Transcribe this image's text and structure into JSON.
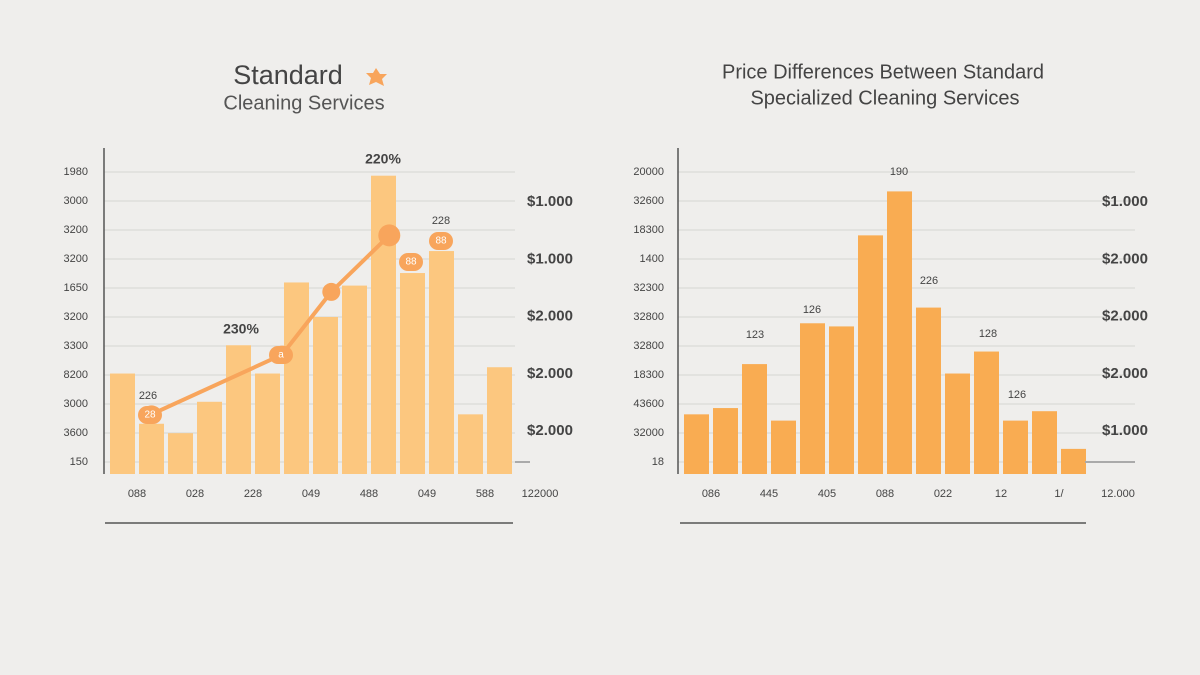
{
  "chart_data": [
    {
      "type": "bar",
      "title": "Standard",
      "subtitle": "Cleaning Services",
      "categories": [
        "088",
        null,
        "028",
        null,
        "228",
        null,
        "049",
        null,
        "488",
        null,
        "049",
        null,
        "588",
        null
      ],
      "x_axis_end_label": "122000",
      "ylim": [
        0,
        100
      ],
      "y_axis_labels": [
        "1980",
        "3000",
        "3200",
        "3200",
        "1650",
        "3200",
        "3300",
        "8200",
        "3000",
        "3600",
        "150"
      ],
      "y2_axis_labels": [
        "$1.000",
        "$1.000",
        "$2.000",
        "$2.000",
        "$2.000"
      ],
      "series": [
        {
          "name": null,
          "color": "#fcc77f",
          "values": [
            32,
            16,
            13,
            23,
            41,
            32,
            61,
            50,
            60,
            95,
            64,
            71,
            19,
            34
          ]
        }
      ],
      "line": {
        "color": "#f8a55c",
        "x": [
          1,
          5.5,
          7.2,
          9.2
        ],
        "values": [
          19,
          38,
          58,
          76
        ]
      },
      "annotations": [
        "230%",
        "220%",
        "228",
        "226",
        "28",
        "a",
        "88",
        "88"
      ],
      "grid": true
    },
    {
      "type": "bar",
      "title": "Price Differences Between Standard",
      "subtitle": "Specialized Cleaning Services",
      "categories": [
        "086",
        null,
        "445",
        null,
        "405",
        null,
        "088",
        null,
        "022",
        null,
        "12",
        null,
        "1/",
        null
      ],
      "x_axis_end_label": "12.000",
      "ylim": [
        0,
        100
      ],
      "y_axis_labels": [
        "20000",
        "32600",
        "18300",
        "1400",
        "32300",
        "32800",
        "32800",
        "18300",
        "43600",
        "32000",
        "18"
      ],
      "y2_axis_labels": [
        "$1.000",
        "$2.000",
        "$2.000",
        "$2.000",
        "$1.000"
      ],
      "series": [
        {
          "name": null,
          "color": "#f9ac52",
          "values": [
            19,
            21,
            35,
            17,
            48,
            47,
            76,
            90,
            53,
            32,
            39,
            17,
            20,
            8
          ]
        }
      ],
      "annotations": [
        "123",
        "126",
        "190",
        "226",
        "128",
        "126"
      ],
      "grid": true
    }
  ]
}
